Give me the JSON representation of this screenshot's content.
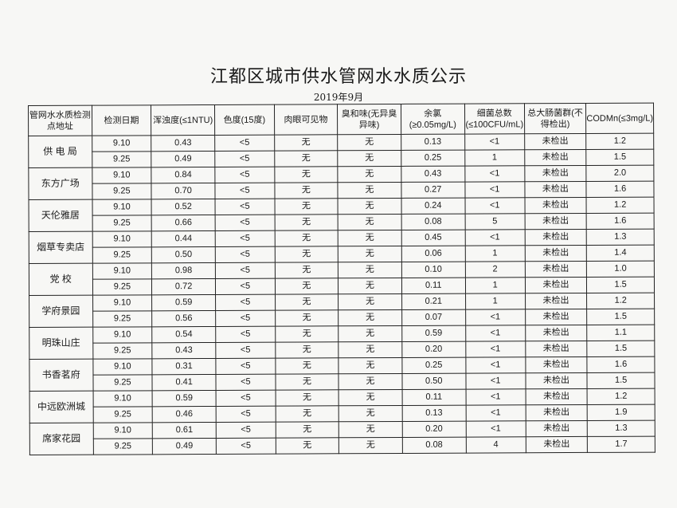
{
  "title": "江都区城市供水管网水水质公示",
  "subtitle": "2019年9月",
  "headers": [
    "管网水水质检测点地址",
    "检测日期",
    "浑浊度(≤1NTU)",
    "色度(15度)",
    "肉眼可见物",
    "臭和味(无异臭异味)",
    "余氯(≥0.05mg/L)",
    "细菌总数(≤100CFU/mL)",
    "总大肠菌群(不得检出)",
    "CODMn(≤3mg/L)"
  ],
  "sites": [
    {
      "name": "供 电 局",
      "rows": [
        [
          "9.10",
          "0.43",
          "<5",
          "无",
          "无",
          "0.13",
          "<1",
          "未检出",
          "1.2"
        ],
        [
          "9.25",
          "0.49",
          "<5",
          "无",
          "无",
          "0.25",
          "1",
          "未检出",
          "1.5"
        ]
      ]
    },
    {
      "name": "东方广场",
      "rows": [
        [
          "9.10",
          "0.84",
          "<5",
          "无",
          "无",
          "0.43",
          "<1",
          "未检出",
          "2.0"
        ],
        [
          "9.25",
          "0.70",
          "<5",
          "无",
          "无",
          "0.27",
          "<1",
          "未检出",
          "1.6"
        ]
      ]
    },
    {
      "name": "天伦雅居",
      "rows": [
        [
          "9.10",
          "0.52",
          "<5",
          "无",
          "无",
          "0.24",
          "<1",
          "未检出",
          "1.2"
        ],
        [
          "9.25",
          "0.66",
          "<5",
          "无",
          "无",
          "0.08",
          "5",
          "未检出",
          "1.6"
        ]
      ]
    },
    {
      "name": "烟草专卖店",
      "rows": [
        [
          "9.10",
          "0.44",
          "<5",
          "无",
          "无",
          "0.45",
          "<1",
          "未检出",
          "1.3"
        ],
        [
          "9.25",
          "0.50",
          "<5",
          "无",
          "无",
          "0.06",
          "1",
          "未检出",
          "1.4"
        ]
      ]
    },
    {
      "name": "党 校",
      "rows": [
        [
          "9.10",
          "0.98",
          "<5",
          "无",
          "无",
          "0.10",
          "2",
          "未检出",
          "1.0"
        ],
        [
          "9.25",
          "0.72",
          "<5",
          "无",
          "无",
          "0.11",
          "1",
          "未检出",
          "1.5"
        ]
      ]
    },
    {
      "name": "学府景园",
      "rows": [
        [
          "9.10",
          "0.59",
          "<5",
          "无",
          "无",
          "0.21",
          "1",
          "未检出",
          "1.2"
        ],
        [
          "9.25",
          "0.56",
          "<5",
          "无",
          "无",
          "0.07",
          "<1",
          "未检出",
          "1.5"
        ]
      ]
    },
    {
      "name": "明珠山庄",
      "rows": [
        [
          "9.10",
          "0.54",
          "<5",
          "无",
          "无",
          "0.59",
          "<1",
          "未检出",
          "1.1"
        ],
        [
          "9.25",
          "0.43",
          "<5",
          "无",
          "无",
          "0.20",
          "<1",
          "未检出",
          "1.5"
        ]
      ]
    },
    {
      "name": "书香茗府",
      "rows": [
        [
          "9.10",
          "0.31",
          "<5",
          "无",
          "无",
          "0.25",
          "<1",
          "未检出",
          "1.6"
        ],
        [
          "9.25",
          "0.41",
          "<5",
          "无",
          "无",
          "0.50",
          "<1",
          "未检出",
          "1.5"
        ]
      ]
    },
    {
      "name": "中远欧洲城",
      "rows": [
        [
          "9.10",
          "0.59",
          "<5",
          "无",
          "无",
          "0.11",
          "<1",
          "未检出",
          "1.2"
        ],
        [
          "9.25",
          "0.46",
          "<5",
          "无",
          "无",
          "0.13",
          "<1",
          "未检出",
          "1.9"
        ]
      ]
    },
    {
      "name": "席家花园",
      "rows": [
        [
          "9.10",
          "0.61",
          "<5",
          "无",
          "无",
          "0.20",
          "<1",
          "未检出",
          "1.3"
        ],
        [
          "9.25",
          "0.49",
          "<5",
          "无",
          "无",
          "0.08",
          "4",
          "未检出",
          "1.7"
        ]
      ]
    }
  ]
}
